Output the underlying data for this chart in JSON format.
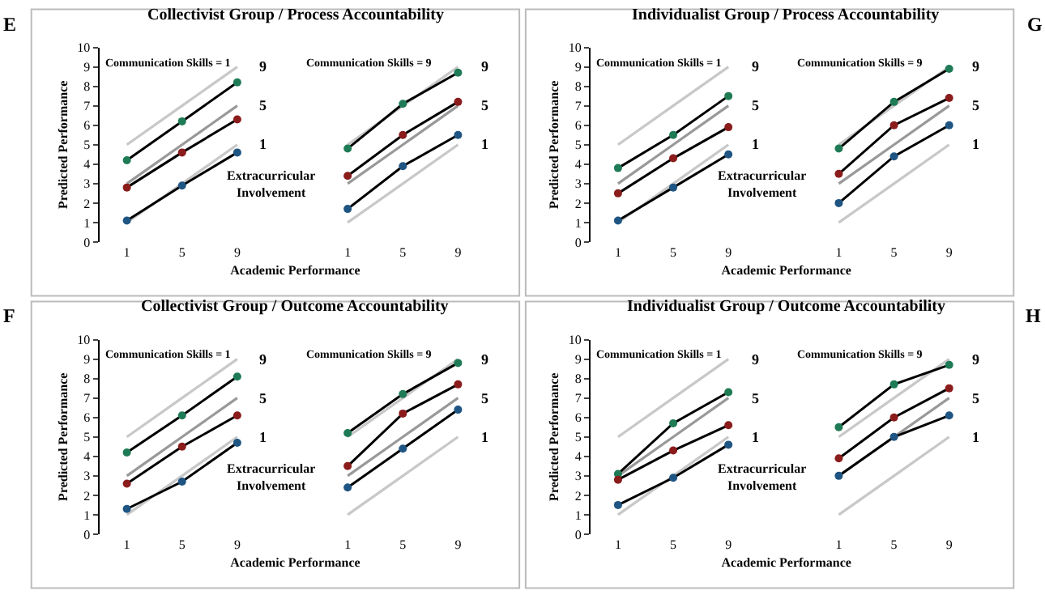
{
  "chart_data": [
    {
      "type": "line",
      "title": "Collectivist Group / Process Accountability",
      "xlabel": "Academic Performance",
      "ylabel": "Predicted Performance",
      "categories": [
        "1",
        "5",
        "9",
        null,
        "1",
        "5",
        "9"
      ],
      "ylim": [
        0,
        10
      ],
      "yticks": [
        0,
        1,
        2,
        3,
        4,
        5,
        6,
        7,
        8,
        9,
        10
      ],
      "marker": "circle",
      "annotations": [
        "E",
        "Communication Skills = 1",
        "Communication Skills = 9",
        "Extracurricular\nInvolvement"
      ],
      "series": [
        {
          "name": "9",
          "color": "#c8c8c8",
          "marker": "none",
          "values": [
            5,
            7,
            9,
            null,
            null,
            null,
            null
          ]
        },
        {
          "name": "5",
          "color": "#999999",
          "marker": "none",
          "values": [
            3,
            5,
            7,
            null,
            null,
            null,
            null
          ]
        },
        {
          "name": "1",
          "color": "#c8c8c8",
          "marker": "none",
          "values": [
            1,
            3,
            5,
            null,
            null,
            null,
            null
          ]
        },
        {
          "name": "9",
          "color": "#c8c8c8",
          "marker": "none",
          "values": [
            null,
            null,
            null,
            null,
            5,
            7,
            9
          ]
        },
        {
          "name": "5",
          "color": "#999999",
          "marker": "none",
          "values": [
            null,
            null,
            null,
            null,
            3,
            5,
            7
          ]
        },
        {
          "name": "1",
          "color": "#c8c8c8",
          "marker": "none",
          "values": [
            null,
            null,
            null,
            null,
            1,
            3,
            5
          ]
        },
        {
          "color": "#1e7b55",
          "values": [
            4.2,
            6.2,
            8.2,
            null,
            4.8,
            7.1,
            8.7
          ]
        },
        {
          "color": "#8b1c1c",
          "values": [
            2.8,
            4.6,
            6.3,
            null,
            3.4,
            5.5,
            7.2
          ]
        },
        {
          "color": "#1f5582",
          "values": [
            1.1,
            2.9,
            4.6,
            null,
            1.7,
            3.9,
            5.5
          ]
        }
      ]
    },
    {
      "type": "line",
      "title": "Individualist Group / Process Accountability",
      "xlabel": "Academic Performance",
      "ylabel": "Predicted Performance",
      "categories": [
        "1",
        "5",
        "9",
        null,
        "1",
        "5",
        "9"
      ],
      "ylim": [
        0,
        10
      ],
      "yticks": [
        0,
        1,
        2,
        3,
        4,
        5,
        6,
        7,
        8,
        9,
        10
      ],
      "marker": "circle",
      "annotations": [
        "G",
        "Communication Skills = 1",
        "Communication Skills = 9",
        "Extracurricular\nInvolvement"
      ],
      "series": [
        {
          "name": "9",
          "color": "#c8c8c8",
          "marker": "none",
          "values": [
            5,
            7,
            9,
            null,
            null,
            null,
            null
          ]
        },
        {
          "name": "5",
          "color": "#999999",
          "marker": "none",
          "values": [
            3,
            5,
            7,
            null,
            null,
            null,
            null
          ]
        },
        {
          "name": "1",
          "color": "#c8c8c8",
          "marker": "none",
          "values": [
            1,
            3,
            5,
            null,
            null,
            null,
            null
          ]
        },
        {
          "name": "9",
          "color": "#c8c8c8",
          "marker": "none",
          "values": [
            null,
            null,
            null,
            null,
            5,
            7,
            9
          ]
        },
        {
          "name": "5",
          "color": "#999999",
          "marker": "none",
          "values": [
            null,
            null,
            null,
            null,
            3,
            5,
            7
          ]
        },
        {
          "name": "1",
          "color": "#c8c8c8",
          "marker": "none",
          "values": [
            null,
            null,
            null,
            null,
            1,
            3,
            5
          ]
        },
        {
          "color": "#1e7b55",
          "values": [
            3.8,
            5.5,
            7.5,
            null,
            4.8,
            7.2,
            8.9
          ]
        },
        {
          "color": "#8b1c1c",
          "values": [
            2.5,
            4.3,
            5.9,
            null,
            3.5,
            6.0,
            7.4
          ]
        },
        {
          "color": "#1f5582",
          "values": [
            1.1,
            2.8,
            4.5,
            null,
            2.0,
            4.4,
            6.0
          ]
        }
      ]
    },
    {
      "type": "line",
      "title": "Collectivist Group / Outcome Accountability",
      "xlabel": "Academic Performance",
      "ylabel": "Predicted Performance",
      "categories": [
        "1",
        "5",
        "9",
        null,
        "1",
        "5",
        "9"
      ],
      "ylim": [
        0,
        10
      ],
      "yticks": [
        0,
        1,
        2,
        3,
        4,
        5,
        6,
        7,
        8,
        9,
        10
      ],
      "marker": "circle",
      "annotations": [
        "F",
        "Communication Skills = 1",
        "Communication Skills = 9",
        "Extracurricular\nInvolvement"
      ],
      "series": [
        {
          "name": "9",
          "color": "#c8c8c8",
          "marker": "none",
          "values": [
            5,
            7,
            9,
            null,
            null,
            null,
            null
          ]
        },
        {
          "name": "5",
          "color": "#999999",
          "marker": "none",
          "values": [
            3,
            5,
            7,
            null,
            null,
            null,
            null
          ]
        },
        {
          "name": "1",
          "color": "#c8c8c8",
          "marker": "none",
          "values": [
            1,
            3,
            5,
            null,
            null,
            null,
            null
          ]
        },
        {
          "name": "9",
          "color": "#c8c8c8",
          "marker": "none",
          "values": [
            null,
            null,
            null,
            null,
            5,
            7,
            9
          ]
        },
        {
          "name": "5",
          "color": "#999999",
          "marker": "none",
          "values": [
            null,
            null,
            null,
            null,
            3,
            5,
            7
          ]
        },
        {
          "name": "1",
          "color": "#c8c8c8",
          "marker": "none",
          "values": [
            null,
            null,
            null,
            null,
            1,
            3,
            5
          ]
        },
        {
          "color": "#1e7b55",
          "values": [
            4.2,
            6.1,
            8.1,
            null,
            5.2,
            7.2,
            8.8
          ]
        },
        {
          "color": "#8b1c1c",
          "values": [
            2.6,
            4.5,
            6.1,
            null,
            3.5,
            6.2,
            7.7
          ]
        },
        {
          "color": "#1f5582",
          "values": [
            1.3,
            2.7,
            4.7,
            null,
            2.4,
            4.4,
            6.4
          ]
        }
      ]
    },
    {
      "type": "line",
      "title": "Individualist Group / Outcome Accountability",
      "xlabel": "Academic Performance",
      "ylabel": "Predicted Performance",
      "categories": [
        "1",
        "5",
        "9",
        null,
        "1",
        "5",
        "9"
      ],
      "ylim": [
        0,
        10
      ],
      "yticks": [
        0,
        1,
        2,
        3,
        4,
        5,
        6,
        7,
        8,
        9,
        10
      ],
      "marker": "circle",
      "annotations": [
        "H",
        "Communication Skills = 1",
        "Communication Skills = 9",
        "Extracurricular\nInvolvement"
      ],
      "series": [
        {
          "name": "9",
          "color": "#c8c8c8",
          "marker": "none",
          "values": [
            5,
            7,
            9,
            null,
            null,
            null,
            null
          ]
        },
        {
          "name": "5",
          "color": "#999999",
          "marker": "none",
          "values": [
            3,
            5,
            7,
            null,
            null,
            null,
            null
          ]
        },
        {
          "name": "1",
          "color": "#c8c8c8",
          "marker": "none",
          "values": [
            1,
            3,
            5,
            null,
            null,
            null,
            null
          ]
        },
        {
          "name": "9",
          "color": "#c8c8c8",
          "marker": "none",
          "values": [
            null,
            null,
            null,
            null,
            5,
            7,
            9
          ]
        },
        {
          "name": "5",
          "color": "#999999",
          "marker": "none",
          "values": [
            null,
            null,
            null,
            null,
            3,
            5,
            7
          ]
        },
        {
          "name": "1",
          "color": "#c8c8c8",
          "marker": "none",
          "values": [
            null,
            null,
            null,
            null,
            1,
            3,
            5
          ]
        },
        {
          "color": "#1e7b55",
          "values": [
            3.1,
            5.7,
            7.3,
            null,
            5.5,
            7.7,
            8.7
          ]
        },
        {
          "color": "#8b1c1c",
          "values": [
            2.8,
            4.3,
            5.6,
            null,
            3.9,
            6.0,
            7.5
          ]
        },
        {
          "color": "#1f5582",
          "values": [
            1.5,
            2.9,
            4.6,
            null,
            3.0,
            5.0,
            6.1
          ]
        }
      ]
    }
  ]
}
